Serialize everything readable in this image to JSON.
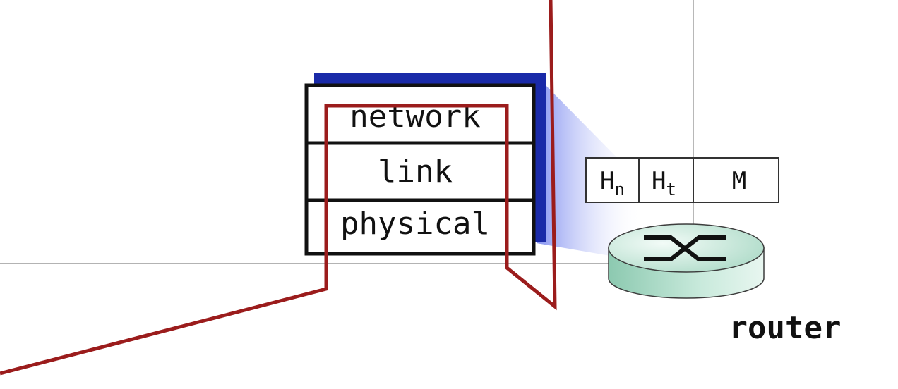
{
  "stack": {
    "layers": [
      {
        "id": "network",
        "label": "network"
      },
      {
        "id": "link",
        "label": "link"
      },
      {
        "id": "physical",
        "label": "physical"
      }
    ]
  },
  "datagram": {
    "fields": [
      {
        "id": "hn",
        "label": "H",
        "sub": "n"
      },
      {
        "id": "ht",
        "label": "H",
        "sub": "t"
      },
      {
        "id": "m",
        "label": "M",
        "sub": ""
      }
    ]
  },
  "router": {
    "label": "router"
  },
  "colors": {
    "path": "#9b1c1c",
    "stack_shadow": "#1a2aa8",
    "router_top": "#d6efe6",
    "router_side": "#7fbfa6",
    "beam": "#8f9bf0"
  }
}
